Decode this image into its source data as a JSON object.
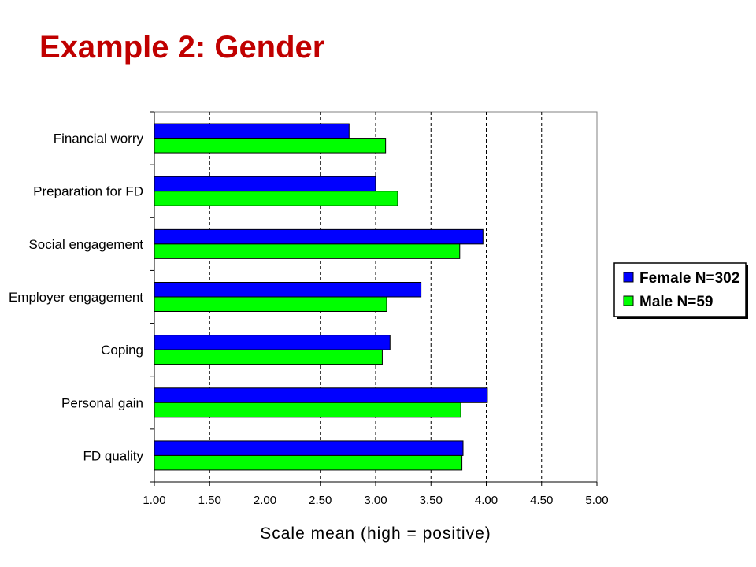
{
  "slide": {
    "title": "Example 2: Gender"
  },
  "colors": {
    "title": "#c00000",
    "female": "#0000ff",
    "male": "#00ff00"
  },
  "chart_data": {
    "type": "bar",
    "orientation": "horizontal",
    "title": "",
    "xlabel": "Scale mean (high = positive)",
    "ylabel": "",
    "xlim": [
      1.0,
      5.0
    ],
    "xticks": [
      "1.00",
      "1.50",
      "2.00",
      "2.50",
      "3.00",
      "3.50",
      "4.00",
      "4.50",
      "5.00"
    ],
    "grid": "vertical dashed",
    "legend_position": "right",
    "categories": [
      "Financial worry",
      "Preparation for FD",
      "Social engagement",
      "Employer engagement",
      "Coping",
      "Personal gain",
      "FD quality"
    ],
    "series": [
      {
        "name": "Female N=302",
        "color": "#0000ff",
        "values": [
          2.76,
          3.0,
          3.97,
          3.41,
          3.13,
          4.01,
          3.79
        ]
      },
      {
        "name": "Male N=59",
        "color": "#00ff00",
        "values": [
          3.09,
          3.2,
          3.76,
          3.1,
          3.06,
          3.77,
          3.78
        ]
      }
    ]
  }
}
